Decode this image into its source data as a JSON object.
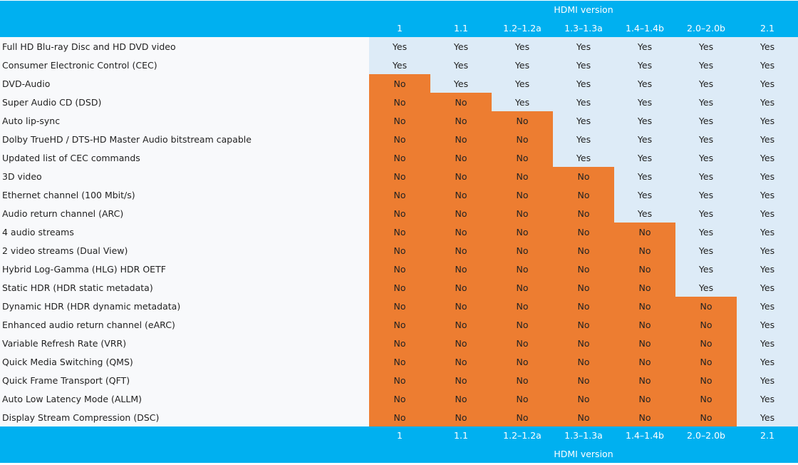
{
  "header": {
    "group_label": "HDMI version",
    "versions": [
      "1",
      "1.1",
      "1.2–1.2a",
      "1.3–1.3a",
      "1.4–1.4b",
      "2.0–2.0b",
      "2.1"
    ]
  },
  "colors": {
    "header": "#00b0f0",
    "yes": "#ddebf7",
    "no": "#ed7d31"
  },
  "rows": [
    {
      "feature": "Full HD Blu-ray Disc and HD DVD video",
      "values": [
        "Yes",
        "Yes",
        "Yes",
        "Yes",
        "Yes",
        "Yes",
        "Yes"
      ]
    },
    {
      "feature": "Consumer Electronic Control (CEC)",
      "values": [
        "Yes",
        "Yes",
        "Yes",
        "Yes",
        "Yes",
        "Yes",
        "Yes"
      ]
    },
    {
      "feature": "DVD-Audio",
      "values": [
        "No",
        "Yes",
        "Yes",
        "Yes",
        "Yes",
        "Yes",
        "Yes"
      ]
    },
    {
      "feature": "Super Audio CD (DSD)",
      "values": [
        "No",
        "No",
        "Yes",
        "Yes",
        "Yes",
        "Yes",
        "Yes"
      ]
    },
    {
      "feature": "Auto lip-sync",
      "values": [
        "No",
        "No",
        "No",
        "Yes",
        "Yes",
        "Yes",
        "Yes"
      ]
    },
    {
      "feature": "Dolby TrueHD / DTS-HD Master Audio bitstream capable",
      "values": [
        "No",
        "No",
        "No",
        "Yes",
        "Yes",
        "Yes",
        "Yes"
      ]
    },
    {
      "feature": "Updated list of CEC commands",
      "values": [
        "No",
        "No",
        "No",
        "Yes",
        "Yes",
        "Yes",
        "Yes"
      ]
    },
    {
      "feature": "3D video",
      "values": [
        "No",
        "No",
        "No",
        "No",
        "Yes",
        "Yes",
        "Yes"
      ]
    },
    {
      "feature": "Ethernet channel (100 Mbit/s)",
      "values": [
        "No",
        "No",
        "No",
        "No",
        "Yes",
        "Yes",
        "Yes"
      ]
    },
    {
      "feature": "Audio return channel (ARC)",
      "values": [
        "No",
        "No",
        "No",
        "No",
        "Yes",
        "Yes",
        "Yes"
      ]
    },
    {
      "feature": "4 audio streams",
      "values": [
        "No",
        "No",
        "No",
        "No",
        "No",
        "Yes",
        "Yes"
      ]
    },
    {
      "feature": "2 video streams (Dual View)",
      "values": [
        "No",
        "No",
        "No",
        "No",
        "No",
        "Yes",
        "Yes"
      ]
    },
    {
      "feature": "Hybrid Log-Gamma (HLG) HDR OETF",
      "values": [
        "No",
        "No",
        "No",
        "No",
        "No",
        "Yes",
        "Yes"
      ]
    },
    {
      "feature": "Static HDR (HDR static metadata)",
      "values": [
        "No",
        "No",
        "No",
        "No",
        "No",
        "Yes",
        "Yes"
      ]
    },
    {
      "feature": "Dynamic HDR (HDR dynamic metadata)",
      "values": [
        "No",
        "No",
        "No",
        "No",
        "No",
        "No",
        "Yes"
      ]
    },
    {
      "feature": "Enhanced audio return channel (eARC)",
      "values": [
        "No",
        "No",
        "No",
        "No",
        "No",
        "No",
        "Yes"
      ]
    },
    {
      "feature": "Variable Refresh Rate (VRR)",
      "values": [
        "No",
        "No",
        "No",
        "No",
        "No",
        "No",
        "Yes"
      ]
    },
    {
      "feature": "Quick Media Switching (QMS)",
      "values": [
        "No",
        "No",
        "No",
        "No",
        "No",
        "No",
        "Yes"
      ]
    },
    {
      "feature": "Quick Frame Transport (QFT)",
      "values": [
        "No",
        "No",
        "No",
        "No",
        "No",
        "No",
        "Yes"
      ]
    },
    {
      "feature": "Auto Low Latency Mode (ALLM)",
      "values": [
        "No",
        "No",
        "No",
        "No",
        "No",
        "No",
        "Yes"
      ]
    },
    {
      "feature": "Display Stream Compression (DSC)",
      "values": [
        "No",
        "No",
        "No",
        "No",
        "No",
        "No",
        "Yes"
      ]
    }
  ]
}
